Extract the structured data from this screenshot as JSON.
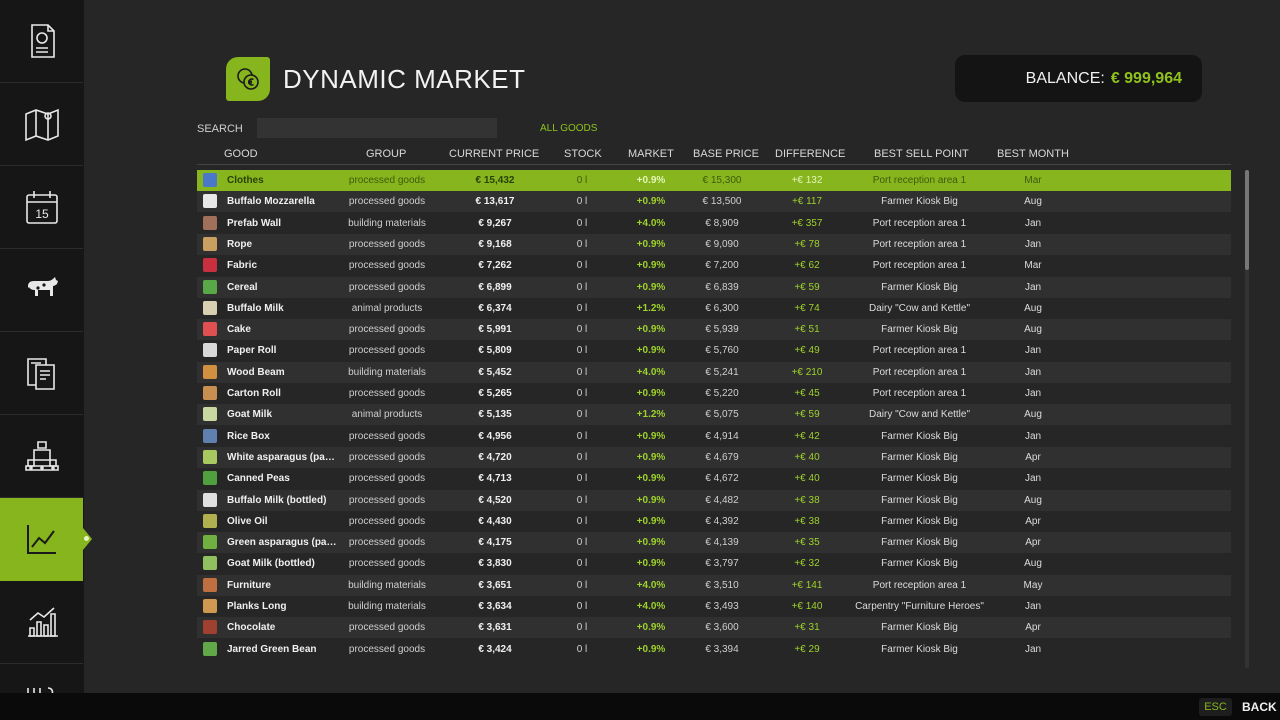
{
  "sidebar": {
    "items": [
      {
        "name": "finances-icon"
      },
      {
        "name": "map-icon"
      },
      {
        "name": "calendar-icon",
        "text": "15"
      },
      {
        "name": "animals-icon"
      },
      {
        "name": "contracts-icon"
      },
      {
        "name": "production-icon"
      },
      {
        "name": "prices-chart-icon",
        "active": true
      },
      {
        "name": "statistics-icon"
      },
      {
        "name": "more-icon"
      }
    ]
  },
  "header": {
    "title": "DYNAMIC MARKET",
    "balance_label": "BALANCE:",
    "balance_value": "€ 999,964"
  },
  "search": {
    "label": "SEARCH",
    "value": "",
    "placeholder": ""
  },
  "filter": {
    "label": "ALL GOODS"
  },
  "columns": {
    "good": "GOOD",
    "group": "GROUP",
    "current_price": "CURRENT PRICE",
    "stock": "STOCK",
    "market": "MARKET",
    "base_price": "BASE PRICE",
    "difference": "DIFFERENCE",
    "best_sell_point": "BEST SELL POINT",
    "best_month": "BEST MONTH"
  },
  "rows": [
    {
      "good": "Clothes",
      "group": "processed goods",
      "price": "€ 15,432",
      "stock": "0 l",
      "market": "+0.9%",
      "base": "€ 15,300",
      "diff": "+€ 132",
      "sell": "Port reception area 1",
      "month": "Mar",
      "icon_color": "#4a78c8"
    },
    {
      "good": "Buffalo Mozzarella",
      "group": "processed goods",
      "price": "€ 13,617",
      "stock": "0 l",
      "market": "+0.9%",
      "base": "€ 13,500",
      "diff": "+€ 117",
      "sell": "Farmer Kiosk Big",
      "month": "Aug",
      "icon_color": "#e8e8e8"
    },
    {
      "good": "Prefab Wall",
      "group": "building materials",
      "price": "€ 9,267",
      "stock": "0 l",
      "market": "+4.0%",
      "base": "€ 8,909",
      "diff": "+€ 357",
      "sell": "Port reception area 1",
      "month": "Jan",
      "icon_color": "#a0705a"
    },
    {
      "good": "Rope",
      "group": "processed goods",
      "price": "€ 9,168",
      "stock": "0 l",
      "market": "+0.9%",
      "base": "€ 9,090",
      "diff": "+€ 78",
      "sell": "Port reception area 1",
      "month": "Jan",
      "icon_color": "#c8a060"
    },
    {
      "good": "Fabric",
      "group": "processed goods",
      "price": "€ 7,262",
      "stock": "0 l",
      "market": "+0.9%",
      "base": "€ 7,200",
      "diff": "+€ 62",
      "sell": "Port reception area 1",
      "month": "Mar",
      "icon_color": "#c83040"
    },
    {
      "good": "Cereal",
      "group": "processed goods",
      "price": "€ 6,899",
      "stock": "0 l",
      "market": "+0.9%",
      "base": "€ 6,839",
      "diff": "+€ 59",
      "sell": "Farmer Kiosk Big",
      "month": "Jan",
      "icon_color": "#58a848"
    },
    {
      "good": "Buffalo Milk",
      "group": "animal products",
      "price": "€ 6,374",
      "stock": "0 l",
      "market": "+1.2%",
      "base": "€ 6,300",
      "diff": "+€ 74",
      "sell": "Dairy \"Cow and Kettle\"",
      "month": "Aug",
      "icon_color": "#d8d0b0"
    },
    {
      "good": "Cake",
      "group": "processed goods",
      "price": "€ 5,991",
      "stock": "0 l",
      "market": "+0.9%",
      "base": "€ 5,939",
      "diff": "+€ 51",
      "sell": "Farmer Kiosk Big",
      "month": "Aug",
      "icon_color": "#e05050"
    },
    {
      "good": "Paper Roll",
      "group": "processed goods",
      "price": "€ 5,809",
      "stock": "0 l",
      "market": "+0.9%",
      "base": "€ 5,760",
      "diff": "+€ 49",
      "sell": "Port reception area 1",
      "month": "Jan",
      "icon_color": "#d8d8d8"
    },
    {
      "good": "Wood Beam",
      "group": "building materials",
      "price": "€ 5,452",
      "stock": "0 l",
      "market": "+4.0%",
      "base": "€ 5,241",
      "diff": "+€ 210",
      "sell": "Port reception area 1",
      "month": "Jan",
      "icon_color": "#d09040"
    },
    {
      "good": "Carton Roll",
      "group": "processed goods",
      "price": "€ 5,265",
      "stock": "0 l",
      "market": "+0.9%",
      "base": "€ 5,220",
      "diff": "+€ 45",
      "sell": "Port reception area 1",
      "month": "Jan",
      "icon_color": "#c89050"
    },
    {
      "good": "Goat Milk",
      "group": "animal products",
      "price": "€ 5,135",
      "stock": "0 l",
      "market": "+1.2%",
      "base": "€ 5,075",
      "diff": "+€ 59",
      "sell": "Dairy \"Cow and Kettle\"",
      "month": "Aug",
      "icon_color": "#c8d8a0"
    },
    {
      "good": "Rice Box",
      "group": "processed goods",
      "price": "€ 4,956",
      "stock": "0 l",
      "market": "+0.9%",
      "base": "€ 4,914",
      "diff": "+€ 42",
      "sell": "Farmer Kiosk Big",
      "month": "Jan",
      "icon_color": "#6080b0"
    },
    {
      "good": "White asparagus (pack...",
      "group": "processed goods",
      "price": "€ 4,720",
      "stock": "0 l",
      "market": "+0.9%",
      "base": "€ 4,679",
      "diff": "+€ 40",
      "sell": "Farmer Kiosk Big",
      "month": "Apr",
      "icon_color": "#a8c860"
    },
    {
      "good": "Canned Peas",
      "group": "processed goods",
      "price": "€ 4,713",
      "stock": "0 l",
      "market": "+0.9%",
      "base": "€ 4,672",
      "diff": "+€ 40",
      "sell": "Farmer Kiosk Big",
      "month": "Jan",
      "icon_color": "#50a040"
    },
    {
      "good": "Buffalo Milk (bottled)",
      "group": "processed goods",
      "price": "€ 4,520",
      "stock": "0 l",
      "market": "+0.9%",
      "base": "€ 4,482",
      "diff": "+€ 38",
      "sell": "Farmer Kiosk Big",
      "month": "Aug",
      "icon_color": "#e0e0e0"
    },
    {
      "good": "Olive Oil",
      "group": "processed goods",
      "price": "€ 4,430",
      "stock": "0 l",
      "market": "+0.9%",
      "base": "€ 4,392",
      "diff": "+€ 38",
      "sell": "Farmer Kiosk Big",
      "month": "Apr",
      "icon_color": "#b0b050"
    },
    {
      "good": "Green asparagus (pack...",
      "group": "processed goods",
      "price": "€ 4,175",
      "stock": "0 l",
      "market": "+0.9%",
      "base": "€ 4,139",
      "diff": "+€ 35",
      "sell": "Farmer Kiosk Big",
      "month": "Apr",
      "icon_color": "#70b040"
    },
    {
      "good": "Goat Milk (bottled)",
      "group": "processed goods",
      "price": "€ 3,830",
      "stock": "0 l",
      "market": "+0.9%",
      "base": "€ 3,797",
      "diff": "+€ 32",
      "sell": "Farmer Kiosk Big",
      "month": "Aug",
      "icon_color": "#90c060"
    },
    {
      "good": "Furniture",
      "group": "building materials",
      "price": "€ 3,651",
      "stock": "0 l",
      "market": "+4.0%",
      "base": "€ 3,510",
      "diff": "+€ 141",
      "sell": "Port reception area 1",
      "month": "May",
      "icon_color": "#c07040"
    },
    {
      "good": "Planks Long",
      "group": "building materials",
      "price": "€ 3,634",
      "stock": "0 l",
      "market": "+4.0%",
      "base": "€ 3,493",
      "diff": "+€ 140",
      "sell": "Carpentry \"Furniture Heroes\"",
      "month": "Jan",
      "icon_color": "#d09850"
    },
    {
      "good": "Chocolate",
      "group": "processed goods",
      "price": "€ 3,631",
      "stock": "0 l",
      "market": "+0.9%",
      "base": "€ 3,600",
      "diff": "+€ 31",
      "sell": "Farmer Kiosk Big",
      "month": "Apr",
      "icon_color": "#a04030"
    },
    {
      "good": "Jarred Green Bean",
      "group": "processed goods",
      "price": "€ 3,424",
      "stock": "0 l",
      "market": "+0.9%",
      "base": "€ 3,394",
      "diff": "+€ 29",
      "sell": "Farmer Kiosk Big",
      "month": "Jan",
      "icon_color": "#60a848"
    }
  ],
  "footer": {
    "esc_key": "ESC",
    "back_label": "BACK"
  },
  "colors": {
    "accent": "#86b51d",
    "positive": "#9ed22a",
    "background": "#262626"
  }
}
